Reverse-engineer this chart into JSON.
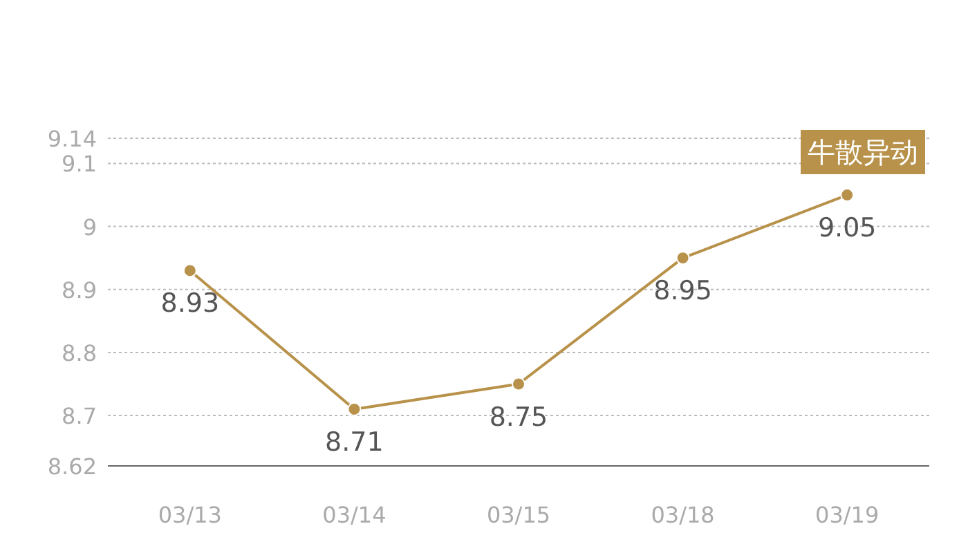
{
  "chart_data": {
    "type": "line",
    "categories": [
      "03/13",
      "03/14",
      "03/15",
      "03/18",
      "03/19"
    ],
    "values": [
      8.93,
      8.71,
      8.75,
      8.95,
      9.05
    ],
    "color": "#b8924a",
    "marker": "circle",
    "line_style": "solid",
    "ylim": [
      8.62,
      9.14
    ],
    "yticks": [
      8.62,
      8.7,
      8.8,
      8.9,
      9,
      9.1,
      9.14
    ],
    "grid": "y",
    "data_labels": true,
    "annotations": [
      "牛散异动"
    ]
  }
}
